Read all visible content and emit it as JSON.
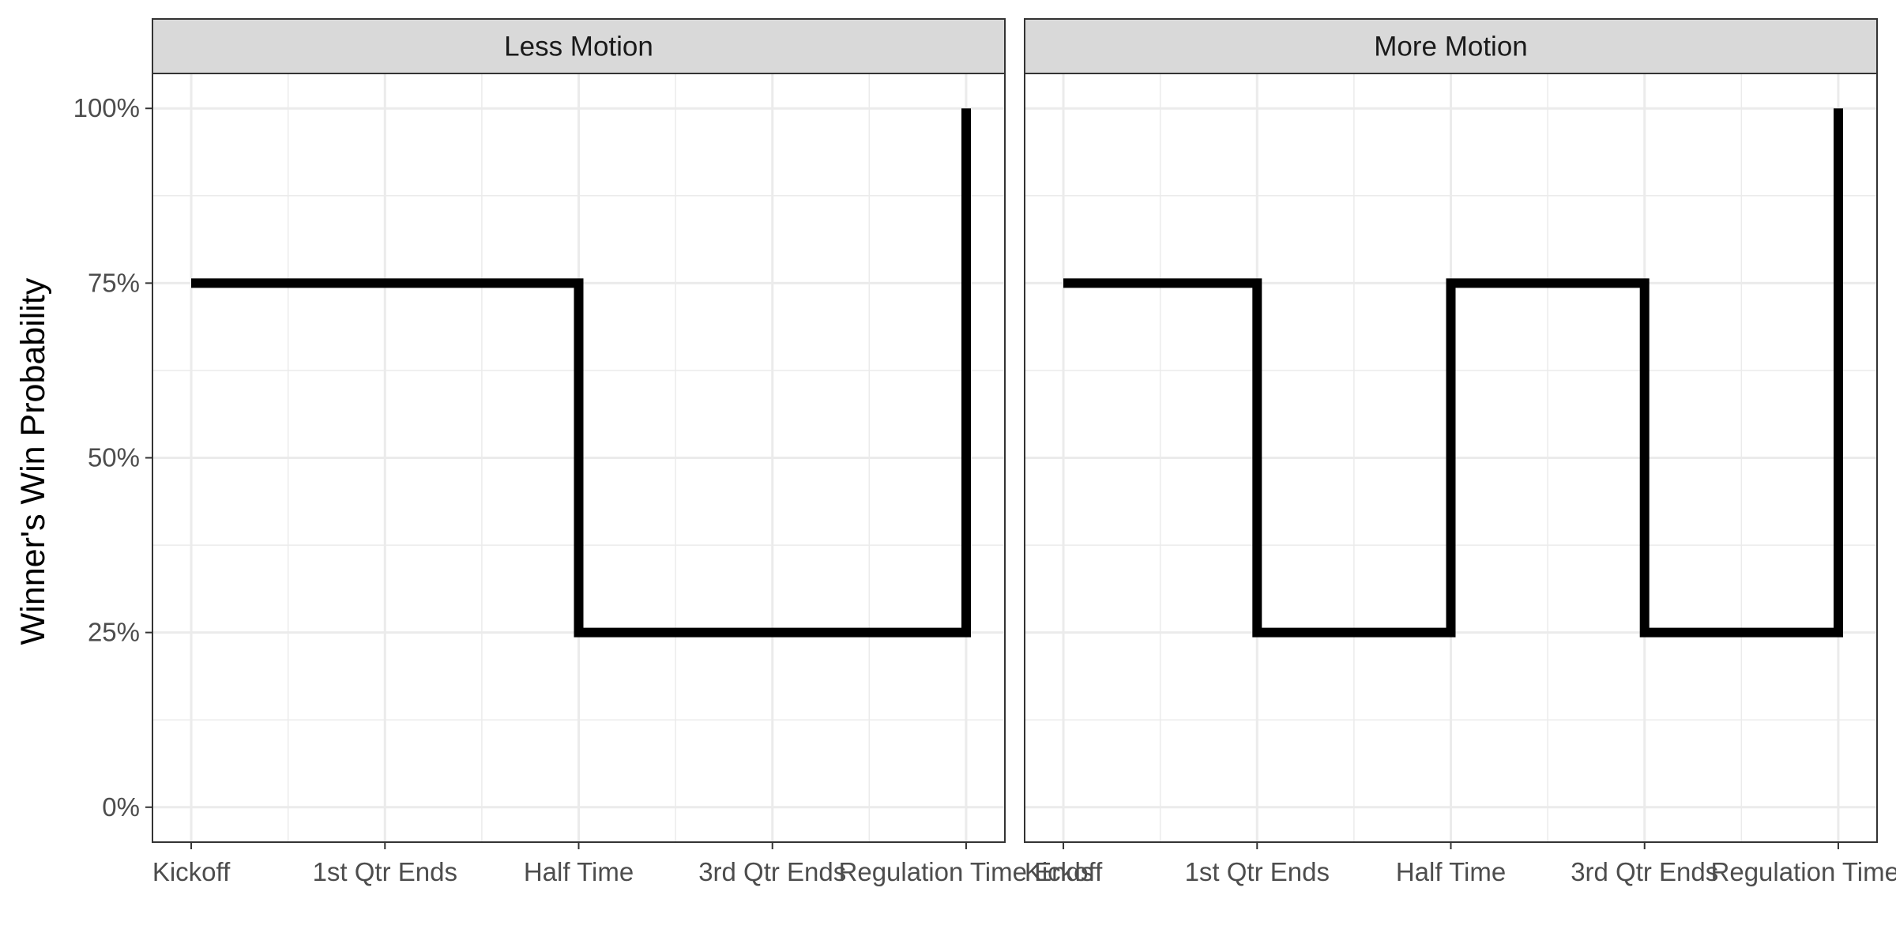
{
  "chart_data": {
    "type": "line",
    "subtype": "step",
    "ylabel": "Winner's Win Probability",
    "xlabel": "",
    "y_ticks": [
      "0%",
      "25%",
      "50%",
      "75%",
      "100%"
    ],
    "y_tick_values": [
      0,
      0.25,
      0.5,
      0.75,
      1.0
    ],
    "ylim": [
      -0.05,
      1.05
    ],
    "x_tick_labels": [
      "Kickoff",
      "1st Qtr Ends",
      "Half Time",
      "3rd Qtr Ends",
      "Regulation Time Ends"
    ],
    "x_tick_values": [
      0,
      1,
      2,
      3,
      4
    ],
    "xlim": [
      -0.2,
      4.2
    ],
    "grid": true,
    "colors": {
      "line": "#000000",
      "strip_bg": "#d9d9d9",
      "grid": "#ebebeb",
      "border": "#333333"
    },
    "panels": [
      {
        "title": "Less Motion",
        "series": [
          {
            "x": [
              0,
              2,
              2,
              4,
              4
            ],
            "y": [
              0.75,
              0.75,
              0.25,
              0.25,
              1.0
            ]
          }
        ]
      },
      {
        "title": "More Motion",
        "series": [
          {
            "x": [
              0,
              1,
              1,
              2,
              2,
              3,
              3,
              4,
              4
            ],
            "y": [
              0.75,
              0.75,
              0.25,
              0.25,
              0.75,
              0.75,
              0.25,
              0.25,
              1.0
            ]
          }
        ]
      }
    ]
  }
}
